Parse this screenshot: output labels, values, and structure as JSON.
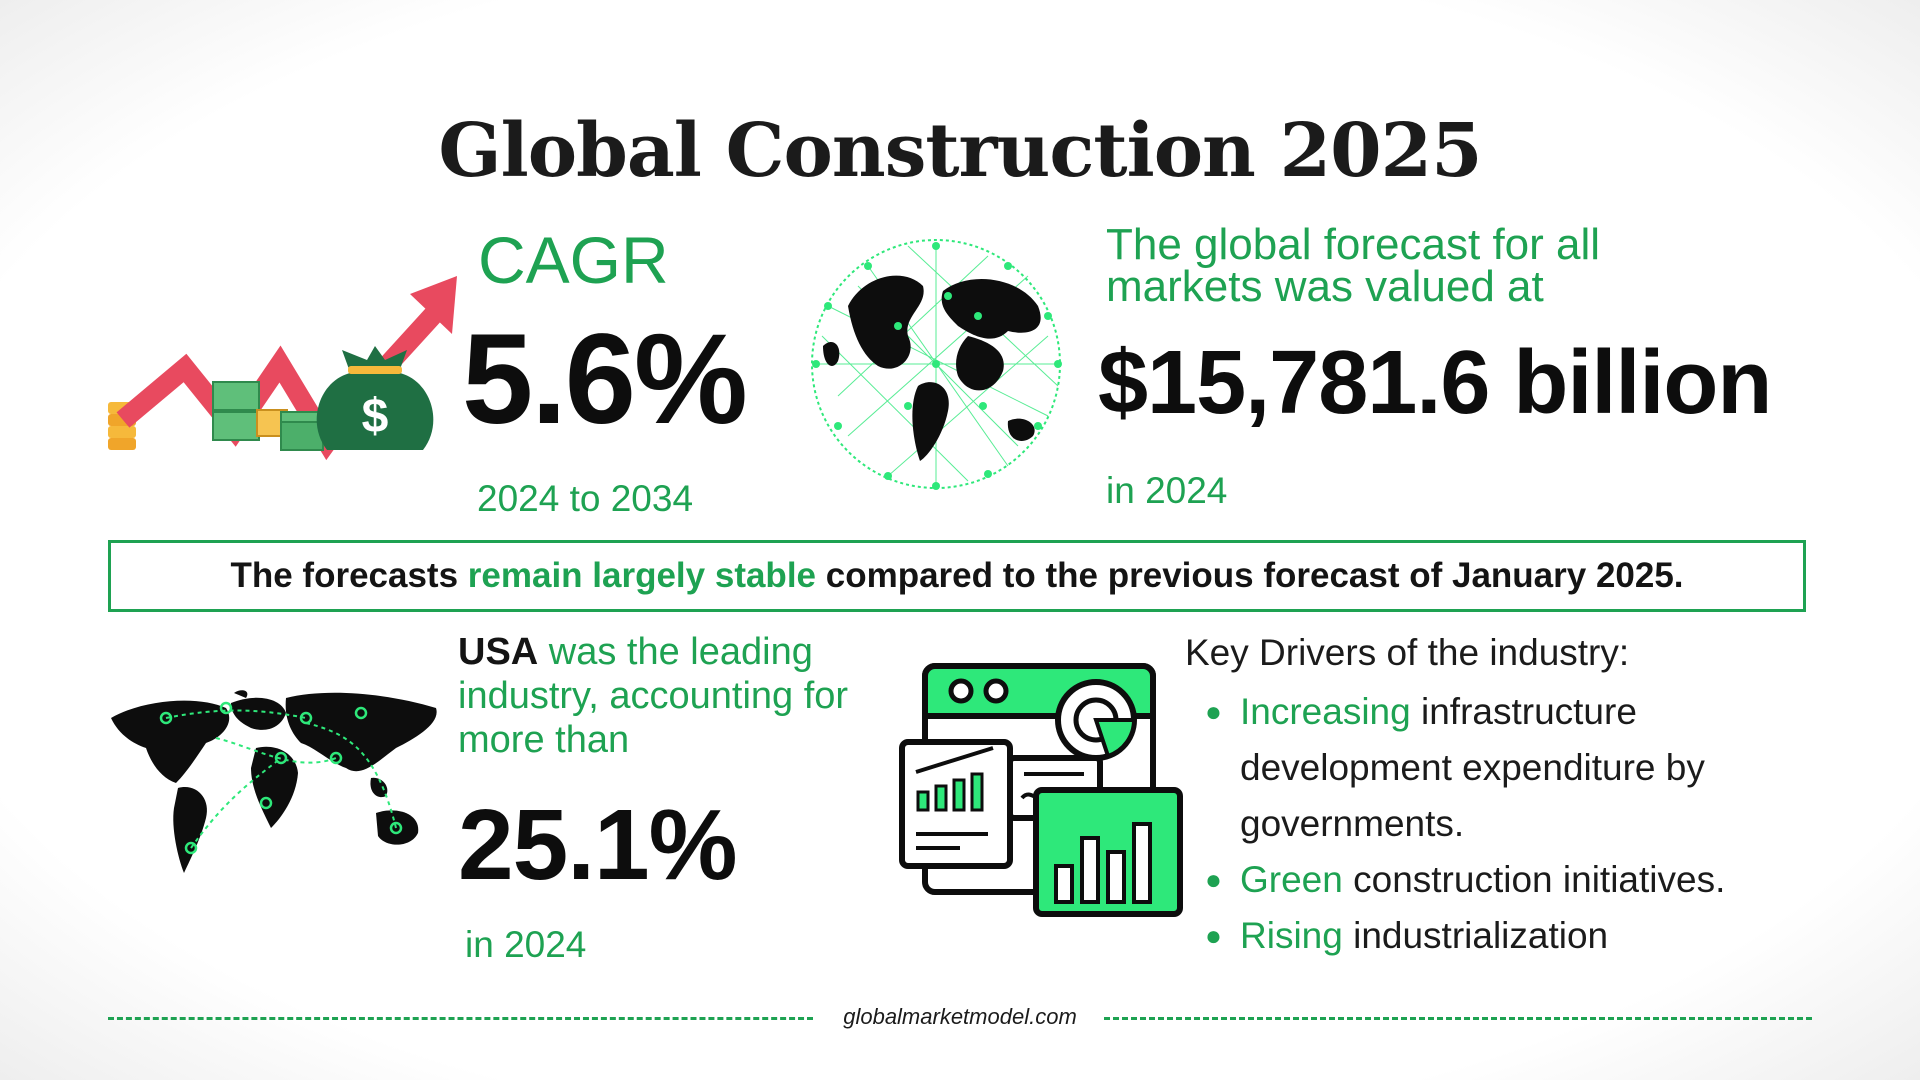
{
  "title": "Global Construction 2025",
  "cagr": {
    "label": "CAGR",
    "value": "5.6%",
    "period": "2024 to 2034"
  },
  "forecast": {
    "text": "The global forecast for all markets was valued at",
    "value": "$15,781.6 billion",
    "year": "in 2024"
  },
  "banner": {
    "part1": "The forecasts ",
    "highlight": "remain largely stable",
    "part2": " compared to the previous forecast of January 2025."
  },
  "usa": {
    "country": "USA",
    "text": " was the leading industry, accounting for more than",
    "value": "25.1%",
    "year": "in 2024"
  },
  "drivers": {
    "title": "Key Drivers of the industry:",
    "items": [
      {
        "highlight": "Increasing",
        "text": " infrastructure development expenditure by governments."
      },
      {
        "highlight": "Green",
        "text": " construction initiatives."
      },
      {
        "highlight": "Rising",
        "text": " industrialization"
      }
    ]
  },
  "footer": {
    "url": "globalmarketmodel.com"
  },
  "colors": {
    "accent": "#1ea252",
    "bright_green": "#2ee87a",
    "arrow_red": "#e84a5f",
    "money_green": "#1f6f43",
    "dark": "#0d0d0d"
  },
  "icons": [
    "growth-arrow-money-icon",
    "globe-network-icon",
    "world-map-icon",
    "analytics-dashboard-icon"
  ]
}
